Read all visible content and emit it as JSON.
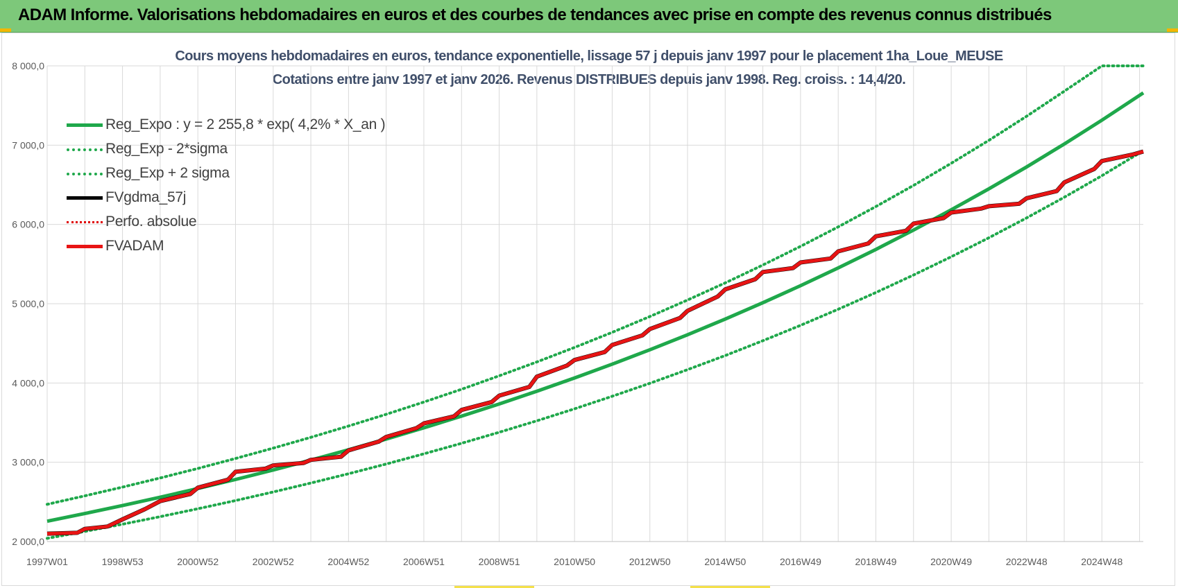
{
  "banner": {
    "title": "ADAM Informe. Valorisations hebdomadaires en euros et des courbes de tendances avec prise en compte des revenus connus distribués"
  },
  "colors": {
    "banner_bg": "#7dc87a",
    "trend": "#1fa84b",
    "fvadam": "#e81414",
    "fvgdma": "#000000",
    "grid": "#d9d9d9"
  },
  "chart_data": {
    "type": "line",
    "title": "Cours moyens hebdomadaires en euros, tendance exponentielle, lissage 57 j depuis janv 1997 pour le placement 1ha_Loue_MEUSE",
    "subtitle": "Cotations entre janv 1997 et janv 2026. Revenus DISTRIBUES depuis janv 1998. Reg. croiss. : 14,4/20.",
    "xlabel": "",
    "ylabel": "",
    "ylim": [
      2000,
      8000
    ],
    "yticks": [
      2000,
      3000,
      4000,
      5000,
      6000,
      7000,
      8000
    ],
    "ytick_labels": [
      "2 000,0",
      "3 000,0",
      "4 000,0",
      "5 000,0",
      "6 000,0",
      "7 000,0",
      "8 000,0"
    ],
    "xlim": [
      0,
      29.1
    ],
    "xtick_positions": [
      0,
      2,
      4,
      6,
      8,
      10,
      12,
      14,
      16,
      18,
      20,
      22,
      24,
      26,
      28
    ],
    "xtick_labels": [
      "1997W01",
      "1998W53",
      "2000W52",
      "2002W52",
      "2004W52",
      "2006W51",
      "2008W51",
      "2010W50",
      "2012W50",
      "2014W50",
      "2016W49",
      "2018W49",
      "2020W49",
      "2022W48",
      "2024W48"
    ],
    "grid": true,
    "legend_position": "top-left",
    "series": [
      {
        "name": "Reg_Expo : y = 2 255,8 * exp( 4,2% *  X_an )",
        "style": "solid",
        "color": "#1fa84b",
        "x": [
          0,
          1,
          2,
          3,
          4,
          5,
          6,
          7,
          8,
          9,
          10,
          11,
          12,
          13,
          14,
          15,
          16,
          17,
          18,
          19,
          20,
          21,
          22,
          23,
          24,
          25,
          26,
          27,
          28,
          29.1
        ],
        "values": [
          2256,
          2353,
          2454,
          2559,
          2669,
          2783,
          2903,
          3027,
          3157,
          3293,
          3434,
          3582,
          3735,
          3896,
          4063,
          4237,
          4419,
          4608,
          4806,
          5012,
          5227,
          5451,
          5685,
          5929,
          6184,
          6449,
          6725,
          7014,
          7315,
          7660
        ]
      },
      {
        "name": "Reg_Exp - 2*sigma",
        "style": "dotted",
        "color": "#1fa84b",
        "x": [
          0,
          1,
          2,
          3,
          4,
          5,
          6,
          7,
          8,
          9,
          10,
          11,
          12,
          13,
          14,
          15,
          16,
          17,
          18,
          19,
          20,
          21,
          22,
          23,
          24,
          25,
          26,
          27,
          28,
          29.1
        ],
        "values": [
          2040,
          2128,
          2219,
          2314,
          2414,
          2517,
          2625,
          2738,
          2855,
          2978,
          3106,
          3239,
          3378,
          3523,
          3674,
          3832,
          3996,
          4168,
          4346,
          4533,
          4727,
          4930,
          5141,
          5362,
          5592,
          5832,
          6082,
          6343,
          6615,
          6930
        ]
      },
      {
        "name": "Reg_Exp + 2 sigma",
        "style": "dotted",
        "color": "#1fa84b",
        "x": [
          0,
          1,
          2,
          3,
          4,
          5,
          6,
          7,
          8,
          9,
          10,
          11,
          12,
          13,
          14,
          15,
          16,
          17,
          18,
          19,
          20,
          21,
          22,
          23,
          24,
          25,
          26,
          27,
          28,
          29.1
        ],
        "values": [
          2470,
          2576,
          2687,
          2802,
          2922,
          3048,
          3178,
          3315,
          3457,
          3605,
          3760,
          3921,
          4090,
          4265,
          4448,
          4639,
          4838,
          5046,
          5262,
          5488,
          5723,
          5969,
          6225,
          6492,
          6771,
          7061,
          7364,
          7680,
          8000,
          8000
        ]
      },
      {
        "name": "FVgdma_57j",
        "style": "solid",
        "color": "#000000",
        "x": [
          0,
          0.8,
          1.0,
          1.6,
          2.0,
          2.6,
          3.0,
          3.8,
          4.0,
          4.8,
          5.0,
          5.8,
          6.0,
          6.8,
          7.0,
          7.8,
          8.0,
          8.8,
          9.0,
          9.8,
          10.0,
          10.8,
          11.0,
          11.8,
          12.0,
          12.8,
          13.0,
          13.8,
          14.0,
          14.8,
          15.0,
          15.8,
          16.0,
          16.8,
          17.0,
          17.8,
          18.0,
          18.8,
          19.0,
          19.8,
          20.0,
          20.8,
          21.0,
          21.8,
          22.0,
          22.8,
          23.0,
          23.8,
          24.0,
          24.8,
          25.0,
          25.8,
          26.0,
          26.8,
          27.0,
          27.8,
          28.0,
          28.8,
          29.1
        ],
        "values": [
          2100,
          2110,
          2160,
          2190,
          2280,
          2410,
          2510,
          2600,
          2680,
          2780,
          2880,
          2920,
          2960,
          2990,
          3030,
          3070,
          3150,
          3260,
          3320,
          3430,
          3490,
          3580,
          3660,
          3760,
          3840,
          3950,
          4080,
          4220,
          4290,
          4390,
          4480,
          4600,
          4680,
          4820,
          4910,
          5090,
          5180,
          5310,
          5400,
          5450,
          5520,
          5570,
          5660,
          5760,
          5850,
          5920,
          6010,
          6080,
          6150,
          6200,
          6230,
          6260,
          6330,
          6420,
          6530,
          6700,
          6800,
          6880,
          6920
        ]
      },
      {
        "name": "Perfo. absolue",
        "style": "dotted",
        "color": "#e00000",
        "x": [
          0,
          29.1
        ],
        "values": [
          2100,
          6920
        ]
      },
      {
        "name": "FVADAM",
        "style": "solid",
        "color": "#e81414",
        "x": [
          0,
          0.8,
          1.0,
          1.6,
          2.0,
          2.6,
          3.0,
          3.8,
          4.0,
          4.8,
          5.0,
          5.8,
          6.0,
          6.8,
          7.0,
          7.8,
          8.0,
          8.8,
          9.0,
          9.8,
          10.0,
          10.8,
          11.0,
          11.8,
          12.0,
          12.8,
          13.0,
          13.8,
          14.0,
          14.8,
          15.0,
          15.8,
          16.0,
          16.8,
          17.0,
          17.8,
          18.0,
          18.8,
          19.0,
          19.8,
          20.0,
          20.8,
          21.0,
          21.8,
          22.0,
          22.8,
          23.0,
          23.8,
          24.0,
          24.8,
          25.0,
          25.8,
          26.0,
          26.8,
          27.0,
          27.8,
          28.0,
          28.8,
          29.1
        ],
        "values": [
          2100,
          2110,
          2160,
          2190,
          2280,
          2410,
          2510,
          2600,
          2680,
          2780,
          2880,
          2920,
          2960,
          2990,
          3030,
          3070,
          3150,
          3260,
          3320,
          3430,
          3490,
          3580,
          3660,
          3760,
          3840,
          3950,
          4080,
          4220,
          4290,
          4390,
          4480,
          4600,
          4680,
          4820,
          4910,
          5090,
          5180,
          5310,
          5400,
          5450,
          5520,
          5570,
          5660,
          5760,
          5850,
          5920,
          6010,
          6080,
          6150,
          6200,
          6230,
          6260,
          6330,
          6420,
          6530,
          6700,
          6800,
          6880,
          6920
        ]
      }
    ]
  }
}
